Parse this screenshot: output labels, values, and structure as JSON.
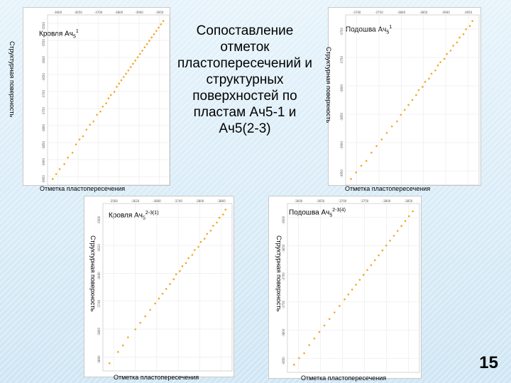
{
  "slide": {
    "title": "Сопоставление отметок пластопересечений и структурных поверхностей по пластам Ач5-1 и Ач5(2-3)",
    "page_number": "15"
  },
  "colors": {
    "points": "#f5a623",
    "frame": "#c9c9c9",
    "grid": "#e6e6e6"
  },
  "chart_data": [
    {
      "type": "scatter",
      "id": "top-left",
      "title_base": "Кровля Ач",
      "title_sub": "5",
      "title_sup": "1",
      "xlabel": "Отметка пластопересечения",
      "ylabel": "Структурная поверхность",
      "x_ticks": [
        "-3600",
        "-3650",
        "-3700",
        "-3800",
        "-3900",
        "-3950"
      ],
      "y_ticks": [
        "-3500",
        "-3550",
        "-3600",
        "-3650",
        "-3700",
        "-3750",
        "-3800",
        "-3850",
        "-3900",
        "-3950"
      ],
      "points": [
        [
          0.02,
          0.02
        ],
        [
          0.05,
          0.05
        ],
        [
          0.08,
          0.08
        ],
        [
          0.12,
          0.11
        ],
        [
          0.15,
          0.15
        ],
        [
          0.19,
          0.18
        ],
        [
          0.22,
          0.23
        ],
        [
          0.25,
          0.26
        ],
        [
          0.28,
          0.28
        ],
        [
          0.31,
          0.32
        ],
        [
          0.34,
          0.35
        ],
        [
          0.37,
          0.37
        ],
        [
          0.4,
          0.41
        ],
        [
          0.43,
          0.43
        ],
        [
          0.45,
          0.46
        ],
        [
          0.48,
          0.48
        ],
        [
          0.5,
          0.51
        ],
        [
          0.52,
          0.53
        ],
        [
          0.55,
          0.55
        ],
        [
          0.57,
          0.58
        ],
        [
          0.59,
          0.6
        ],
        [
          0.61,
          0.62
        ],
        [
          0.63,
          0.64
        ],
        [
          0.65,
          0.66
        ],
        [
          0.67,
          0.68
        ],
        [
          0.69,
          0.7
        ],
        [
          0.71,
          0.72
        ],
        [
          0.73,
          0.74
        ],
        [
          0.75,
          0.76
        ],
        [
          0.77,
          0.78
        ],
        [
          0.79,
          0.8
        ],
        [
          0.81,
          0.82
        ],
        [
          0.83,
          0.84
        ],
        [
          0.85,
          0.86
        ],
        [
          0.87,
          0.88
        ],
        [
          0.89,
          0.9
        ],
        [
          0.91,
          0.92
        ],
        [
          0.93,
          0.94
        ],
        [
          0.95,
          0.96
        ],
        [
          0.97,
          0.98
        ]
      ]
    },
    {
      "type": "scatter",
      "id": "top-right",
      "title_base": "Подошва Ач",
      "title_sub": "5",
      "title_sup": "1",
      "xlabel": "Отметка пластопересечения",
      "ylabel": "Структурная поверхность",
      "x_ticks": [
        "-3700",
        "-3750",
        "-3800",
        "-3850",
        "-3900",
        "-3950"
      ],
      "y_ticks": [
        "-3700",
        "-3750",
        "-3800",
        "-3850",
        "-3900",
        "-3950"
      ],
      "points": [
        [
          0.02,
          0.02
        ],
        [
          0.06,
          0.06
        ],
        [
          0.1,
          0.1
        ],
        [
          0.14,
          0.13
        ],
        [
          0.18,
          0.18
        ],
        [
          0.22,
          0.22
        ],
        [
          0.26,
          0.26
        ],
        [
          0.3,
          0.3
        ],
        [
          0.34,
          0.34
        ],
        [
          0.38,
          0.37
        ],
        [
          0.41,
          0.41
        ],
        [
          0.44,
          0.44
        ],
        [
          0.47,
          0.47
        ],
        [
          0.5,
          0.5
        ],
        [
          0.53,
          0.53
        ],
        [
          0.55,
          0.56
        ],
        [
          0.58,
          0.58
        ],
        [
          0.6,
          0.61
        ],
        [
          0.63,
          0.63
        ],
        [
          0.65,
          0.66
        ],
        [
          0.68,
          0.68
        ],
        [
          0.7,
          0.71
        ],
        [
          0.72,
          0.73
        ],
        [
          0.75,
          0.75
        ],
        [
          0.77,
          0.78
        ],
        [
          0.8,
          0.8
        ],
        [
          0.82,
          0.83
        ],
        [
          0.85,
          0.85
        ],
        [
          0.87,
          0.88
        ],
        [
          0.9,
          0.9
        ],
        [
          0.92,
          0.93
        ],
        [
          0.95,
          0.95
        ],
        [
          0.97,
          0.98
        ]
      ]
    },
    {
      "type": "scatter",
      "id": "bottom-left",
      "title_base": "Кровля Ач",
      "title_sub": "5",
      "title_sup": "2-3(1)",
      "xlabel": "Отметка пластопересечения",
      "ylabel": "Структурная поверхность",
      "x_ticks": [
        "-3560",
        "-3620",
        "-3680",
        "-3740",
        "-3800",
        "-3860"
      ],
      "y_ticks": [
        "-3560",
        "-3620",
        "-3680",
        "-3740",
        "-3800",
        "-3860"
      ],
      "points": [
        [
          0.03,
          0.03
        ],
        [
          0.1,
          0.1
        ],
        [
          0.14,
          0.14
        ],
        [
          0.18,
          0.19
        ],
        [
          0.24,
          0.24
        ],
        [
          0.28,
          0.28
        ],
        [
          0.32,
          0.32
        ],
        [
          0.36,
          0.36
        ],
        [
          0.4,
          0.4
        ],
        [
          0.43,
          0.43
        ],
        [
          0.46,
          0.46
        ],
        [
          0.49,
          0.49
        ],
        [
          0.52,
          0.52
        ],
        [
          0.55,
          0.55
        ],
        [
          0.57,
          0.58
        ],
        [
          0.6,
          0.6
        ],
        [
          0.62,
          0.63
        ],
        [
          0.65,
          0.65
        ],
        [
          0.67,
          0.68
        ],
        [
          0.7,
          0.7
        ],
        [
          0.72,
          0.73
        ],
        [
          0.75,
          0.75
        ],
        [
          0.77,
          0.78
        ],
        [
          0.8,
          0.8
        ],
        [
          0.82,
          0.83
        ],
        [
          0.85,
          0.85
        ],
        [
          0.87,
          0.88
        ],
        [
          0.9,
          0.9
        ],
        [
          0.92,
          0.93
        ],
        [
          0.95,
          0.95
        ],
        [
          0.97,
          0.98
        ]
      ]
    },
    {
      "type": "scatter",
      "id": "bottom-right",
      "title_base": "Подошва Ач",
      "title_sub": "5",
      "title_sup": "2-3(4)",
      "xlabel": "Отметка пластопересечения",
      "ylabel": "Структурная поверхность",
      "x_ticks": [
        "-3600",
        "-3650",
        "-3700",
        "-3750",
        "-3800",
        "-3850"
      ],
      "y_ticks": [
        "-3600",
        "-3650",
        "-3700",
        "-3750",
        "-3800",
        "-3850"
      ],
      "points": [
        [
          0.03,
          0.03
        ],
        [
          0.07,
          0.07
        ],
        [
          0.11,
          0.1
        ],
        [
          0.15,
          0.15
        ],
        [
          0.19,
          0.19
        ],
        [
          0.23,
          0.23
        ],
        [
          0.27,
          0.27
        ],
        [
          0.31,
          0.31
        ],
        [
          0.35,
          0.35
        ],
        [
          0.39,
          0.39
        ],
        [
          0.43,
          0.43
        ],
        [
          0.46,
          0.46
        ],
        [
          0.49,
          0.49
        ],
        [
          0.52,
          0.52
        ],
        [
          0.55,
          0.55
        ],
        [
          0.58,
          0.58
        ],
        [
          0.61,
          0.61
        ],
        [
          0.64,
          0.64
        ],
        [
          0.67,
          0.67
        ],
        [
          0.7,
          0.7
        ],
        [
          0.73,
          0.73
        ],
        [
          0.76,
          0.76
        ],
        [
          0.79,
          0.79
        ],
        [
          0.82,
          0.82
        ],
        [
          0.85,
          0.85
        ],
        [
          0.88,
          0.88
        ],
        [
          0.91,
          0.91
        ],
        [
          0.94,
          0.94
        ],
        [
          0.97,
          0.97
        ]
      ]
    }
  ]
}
